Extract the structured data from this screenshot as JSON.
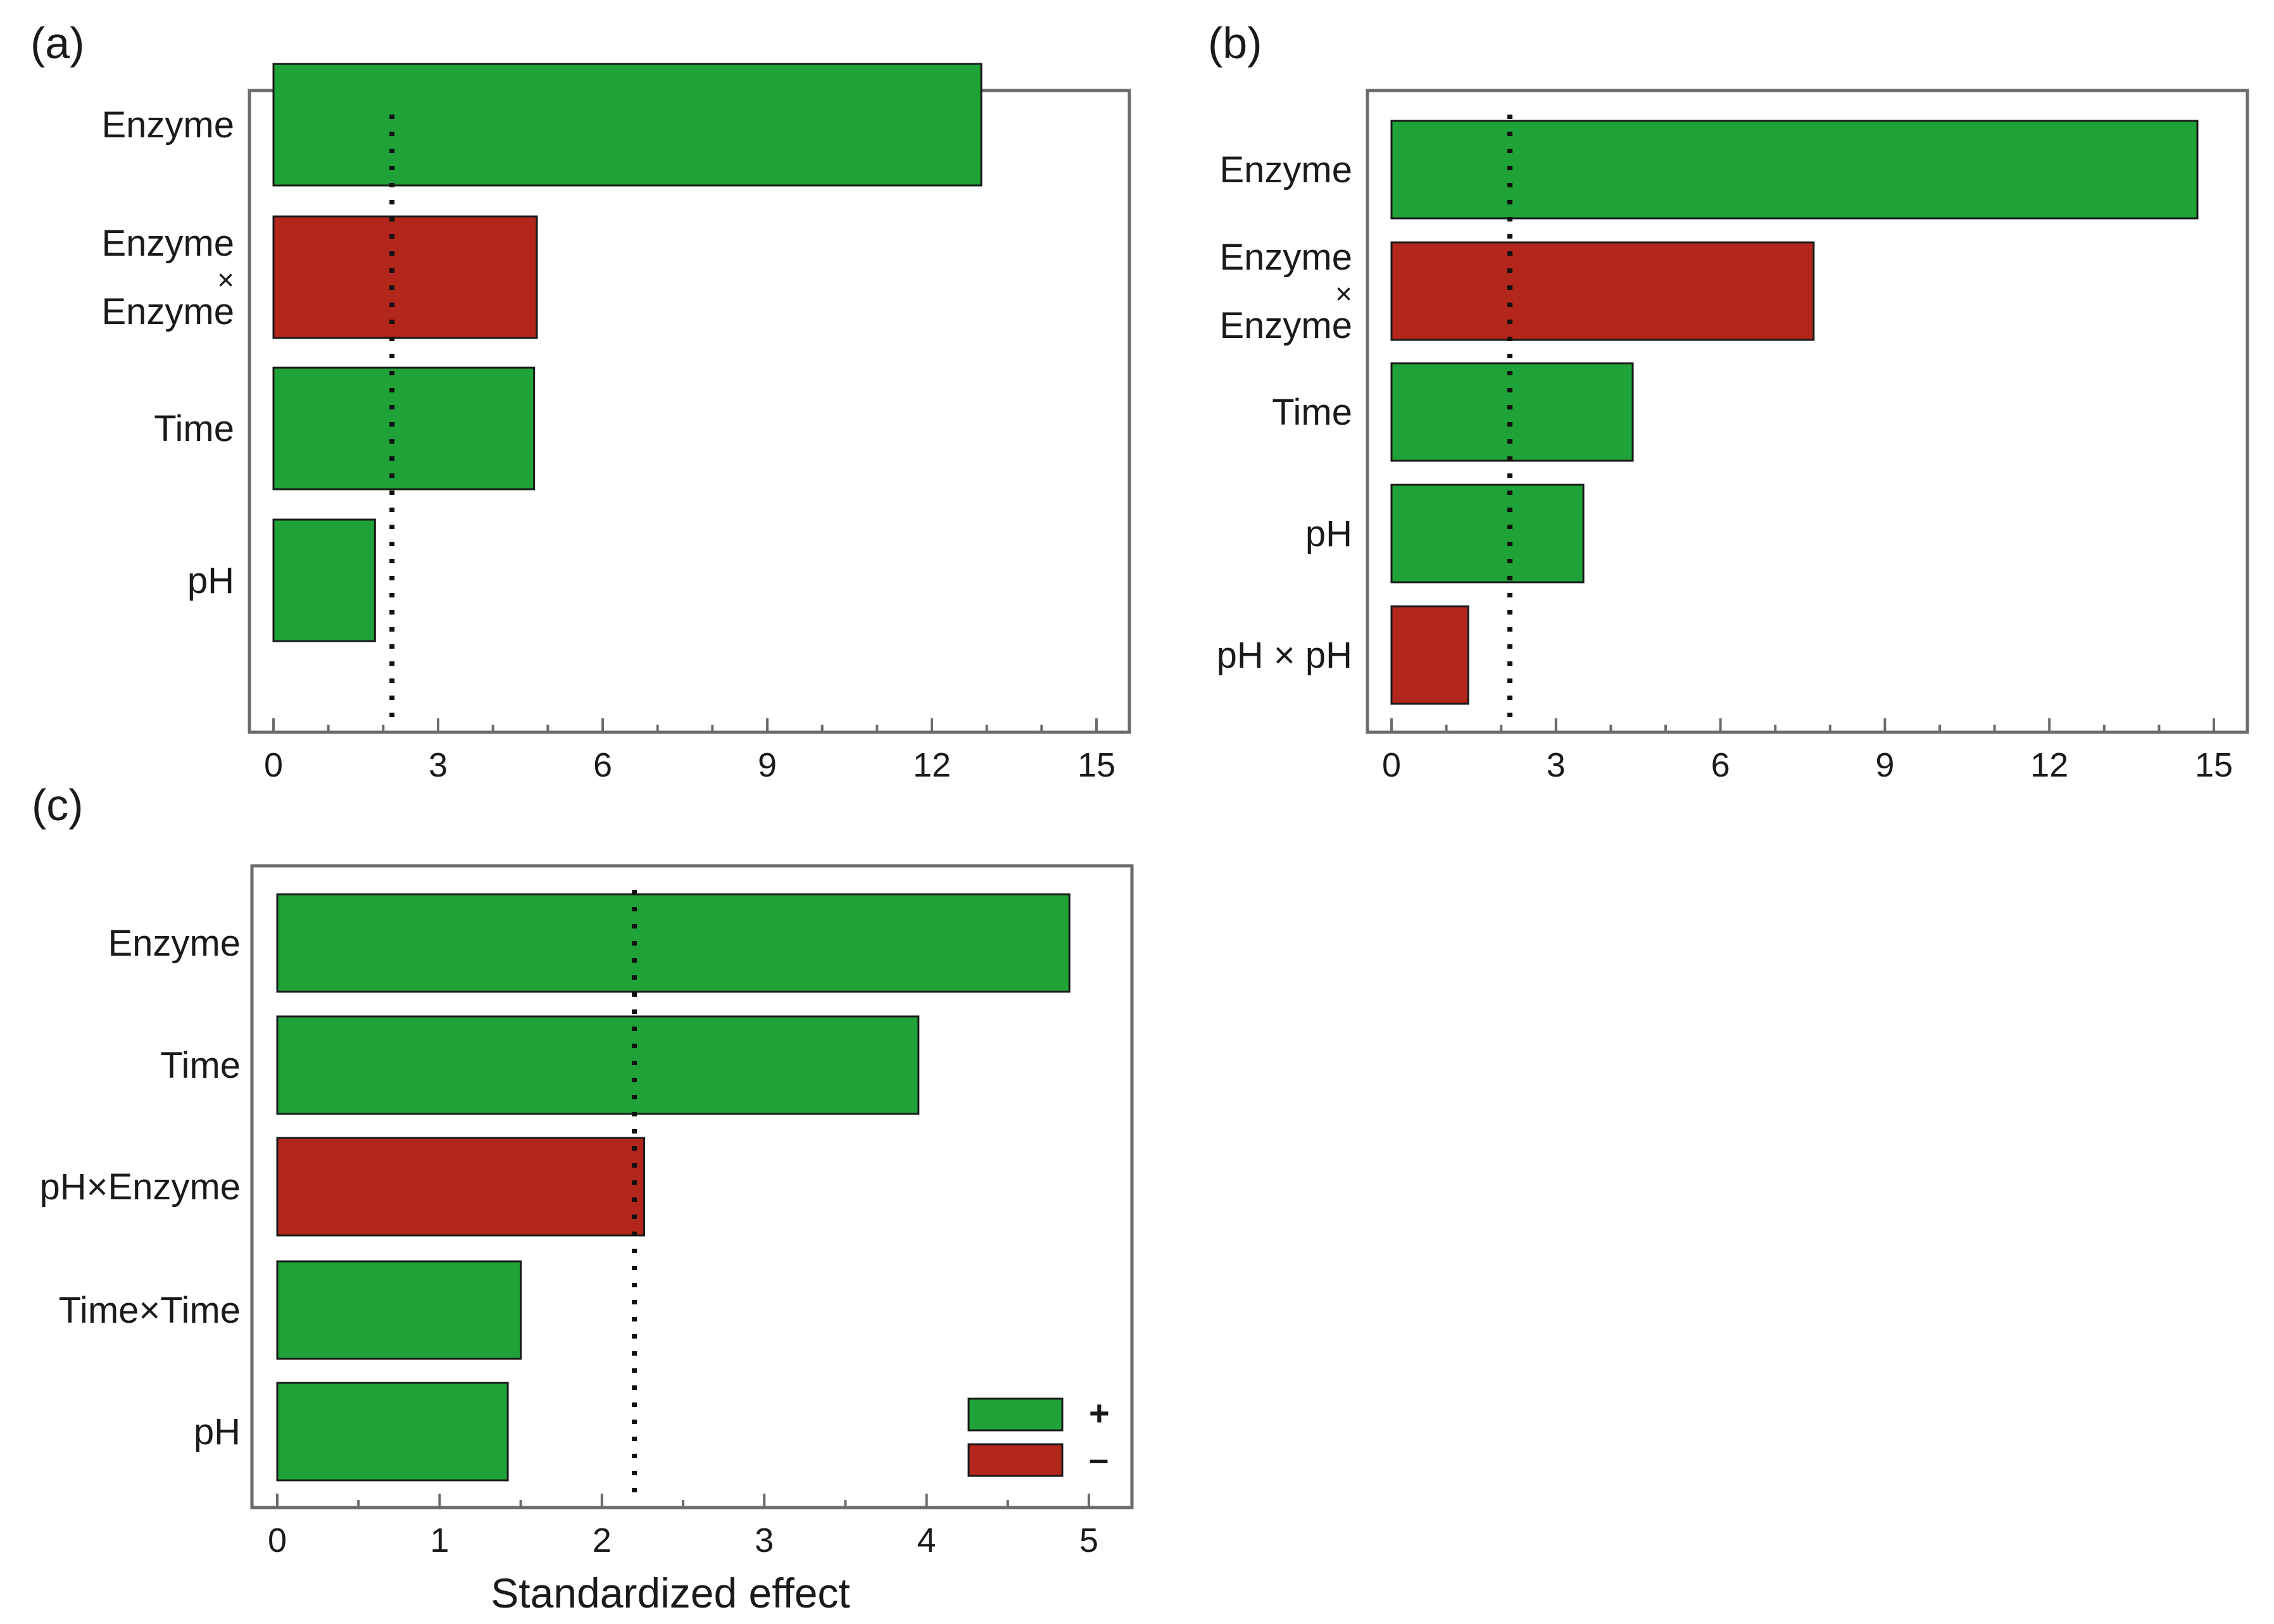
{
  "colors": {
    "positive": "#1fa238",
    "negative": "#b3261b"
  },
  "chart_data": [
    {
      "type": "bar",
      "orientation": "horizontal",
      "panel_label": "(a)",
      "categories": [
        [
          "Enzyme"
        ],
        [
          "Enzyme",
          "×",
          "Enzyme"
        ],
        [
          "Time"
        ],
        [
          "pH"
        ]
      ],
      "values": [
        12.9,
        4.8,
        4.75,
        1.85
      ],
      "signs": [
        "+",
        "-",
        "+",
        "+"
      ],
      "reference_line": 2.16,
      "xlim": [
        0,
        15
      ],
      "xticks": [
        0,
        3,
        6,
        9,
        12,
        15
      ],
      "minor_step": 1,
      "xlabel": ""
    },
    {
      "type": "bar",
      "orientation": "horizontal",
      "panel_label": "(b)",
      "categories": [
        [
          "Enzyme"
        ],
        [
          "Enzyme",
          "×",
          "Enzyme"
        ],
        [
          "Time"
        ],
        [
          "pH"
        ],
        [
          "pH × pH"
        ]
      ],
      "values": [
        14.7,
        7.7,
        4.4,
        3.5,
        1.4
      ],
      "signs": [
        "+",
        "-",
        "+",
        "+",
        "-"
      ],
      "reference_line": 2.16,
      "xlim": [
        0,
        15
      ],
      "xticks": [
        0,
        3,
        6,
        9,
        12,
        15
      ],
      "minor_step": 1,
      "xlabel": ""
    },
    {
      "type": "bar",
      "orientation": "horizontal",
      "panel_label": "(c)",
      "categories": [
        [
          "Enzyme"
        ],
        [
          "Time"
        ],
        [
          "pH×Enzyme"
        ],
        [
          "Time×Time"
        ],
        [
          "pH"
        ]
      ],
      "values": [
        4.88,
        3.95,
        2.26,
        1.5,
        1.42
      ],
      "signs": [
        "+",
        "+",
        "-",
        "+",
        "+"
      ],
      "reference_line": 2.2,
      "xlim": [
        0,
        5
      ],
      "xticks": [
        0,
        1,
        2,
        3,
        4,
        5
      ],
      "minor_step": 0.5,
      "xlabel": "Standardized effect",
      "legend": [
        {
          "sign": "+",
          "label": "+"
        },
        {
          "sign": "-",
          "label": "–"
        }
      ]
    }
  ]
}
